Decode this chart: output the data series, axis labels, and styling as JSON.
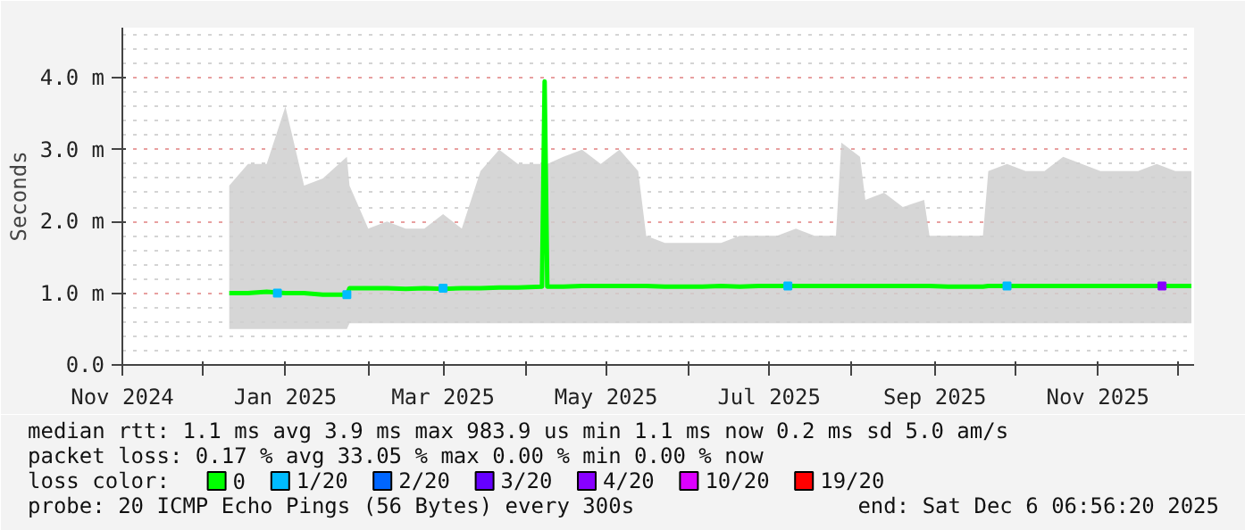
{
  "chart_data": {
    "type": "line",
    "ylabel": "Seconds",
    "xlim": [
      "2024-11-01",
      "2025-12-07"
    ],
    "xticks": [
      {
        "value": "2024-11-01",
        "label": "Nov 2024"
      },
      {
        "value": "2024-12-01",
        "label": null
      },
      {
        "value": "2025-01-01",
        "label": "Jan 2025"
      },
      {
        "value": "2025-02-01",
        "label": null
      },
      {
        "value": "2025-03-01",
        "label": "Mar 2025"
      },
      {
        "value": "2025-04-01",
        "label": null
      },
      {
        "value": "2025-05-01",
        "label": "May 2025"
      },
      {
        "value": "2025-06-01",
        "label": null
      },
      {
        "value": "2025-07-01",
        "label": "Jul 2025"
      },
      {
        "value": "2025-08-01",
        "label": null
      },
      {
        "value": "2025-09-01",
        "label": "Sep 2025"
      },
      {
        "value": "2025-10-01",
        "label": null
      },
      {
        "value": "2025-11-01",
        "label": "Nov 2025"
      },
      {
        "value": "2025-12-01",
        "label": null
      }
    ],
    "ylim": [
      0,
      4.7
    ],
    "yticks": [
      {
        "value": 0,
        "label": "0.0"
      },
      {
        "value": 1,
        "label": "1.0 m"
      },
      {
        "value": 2,
        "label": "2.0 m"
      },
      {
        "value": 3,
        "label": "3.0 m"
      },
      {
        "value": 4,
        "label": "4.0 m"
      }
    ],
    "grid": true,
    "legend": "bottom",
    "legend_title": "loss color:",
    "x": [
      "2024-12-11",
      "2024-12-18",
      "2024-12-25",
      "2025-01-01",
      "2025-01-08",
      "2025-01-15",
      "2025-01-24",
      "2025-01-25",
      "2025-02-01",
      "2025-02-08",
      "2025-02-15",
      "2025-02-22",
      "2025-03-01",
      "2025-03-08",
      "2025-03-15",
      "2025-03-22",
      "2025-03-29",
      "2025-04-07",
      "2025-04-08",
      "2025-04-09",
      "2025-04-15",
      "2025-04-22",
      "2025-04-29",
      "2025-05-06",
      "2025-05-13",
      "2025-05-16",
      "2025-05-23",
      "2025-05-30",
      "2025-06-06",
      "2025-06-13",
      "2025-06-20",
      "2025-06-27",
      "2025-07-04",
      "2025-07-11",
      "2025-07-18",
      "2025-07-26",
      "2025-07-28",
      "2025-08-04",
      "2025-08-06",
      "2025-08-13",
      "2025-08-20",
      "2025-08-28",
      "2025-08-30",
      "2025-09-06",
      "2025-09-13",
      "2025-09-19",
      "2025-09-21",
      "2025-09-28",
      "2025-10-05",
      "2025-10-12",
      "2025-10-19",
      "2025-10-26",
      "2025-11-02",
      "2025-11-09",
      "2025-11-16",
      "2025-11-23",
      "2025-11-30",
      "2025-12-06"
    ],
    "series": [
      {
        "name": "0",
        "color": "#00ff00",
        "values": [
          1.0,
          1.0,
          1.02,
          1.0,
          1.0,
          0.98,
          0.98,
          1.07,
          1.07,
          1.07,
          1.06,
          1.07,
          1.06,
          1.07,
          1.07,
          1.08,
          1.08,
          1.09,
          3.95,
          1.09,
          1.09,
          1.1,
          1.1,
          1.1,
          1.1,
          1.1,
          1.09,
          1.09,
          1.09,
          1.1,
          1.09,
          1.1,
          1.1,
          1.1,
          1.1,
          1.1,
          1.1,
          1.1,
          1.1,
          1.1,
          1.1,
          1.1,
          1.1,
          1.09,
          1.09,
          1.09,
          1.1,
          1.1,
          1.1,
          1.1,
          1.1,
          1.1,
          1.1,
          1.1,
          1.1,
          1.1,
          1.1,
          1.1
        ],
        "lower": [
          0.5,
          0.5,
          0.5,
          0.5,
          0.5,
          0.5,
          0.5,
          0.58,
          0.58,
          0.58,
          0.58,
          0.58,
          0.58,
          0.58,
          0.58,
          0.58,
          0.58,
          0.58,
          0.58,
          0.58,
          0.58,
          0.58,
          0.58,
          0.58,
          0.58,
          0.58,
          0.58,
          0.58,
          0.58,
          0.58,
          0.58,
          0.58,
          0.58,
          0.58,
          0.58,
          0.58,
          0.58,
          0.58,
          0.58,
          0.58,
          0.58,
          0.58,
          0.58,
          0.58,
          0.58,
          0.58,
          0.58,
          0.58,
          0.58,
          0.58,
          0.58,
          0.58,
          0.58,
          0.58,
          0.58,
          0.58,
          0.58,
          0.58
        ],
        "upper": [
          2.5,
          2.8,
          2.8,
          3.6,
          2.5,
          2.6,
          2.9,
          2.5,
          1.9,
          2.0,
          1.9,
          1.9,
          2.1,
          1.9,
          2.7,
          3.0,
          2.8,
          2.8,
          2.8,
          2.8,
          2.9,
          3.0,
          2.8,
          3.0,
          2.7,
          1.8,
          1.7,
          1.7,
          1.7,
          1.7,
          1.8,
          1.8,
          1.8,
          1.9,
          1.8,
          1.8,
          3.1,
          2.9,
          2.3,
          2.4,
          2.2,
          2.3,
          1.8,
          1.8,
          1.8,
          1.8,
          2.7,
          2.8,
          2.7,
          2.7,
          2.9,
          2.8,
          2.7,
          2.7,
          2.7,
          2.8,
          2.7,
          2.7
        ]
      },
      {
        "name": "1/20",
        "color": "#00bbff",
        "type": "scatter",
        "marker": "square",
        "x": [
          "2024-12-29",
          "2025-01-24",
          "2025-03-01",
          "2025-07-08",
          "2025-09-28"
        ],
        "values": [
          1.0,
          0.98,
          1.07,
          1.1,
          1.1
        ]
      },
      {
        "name": "2/20",
        "color": "#0066ff",
        "type": "scatter",
        "marker": "square",
        "values": [
          null,
          null,
          null,
          null,
          null,
          null,
          null,
          null,
          null,
          null,
          null,
          null,
          null,
          null,
          null,
          null,
          null,
          null,
          null,
          null,
          null,
          null,
          null,
          null,
          null,
          null,
          null,
          null,
          null,
          null,
          null,
          null,
          null,
          null,
          null,
          null,
          null,
          null,
          null,
          null,
          null,
          null,
          null,
          null,
          null,
          null,
          null,
          null,
          null,
          null,
          null,
          null,
          null,
          null,
          null,
          null,
          null,
          null
        ]
      },
      {
        "name": "3/20",
        "color": "#6600ff",
        "type": "scatter",
        "marker": "square",
        "values": [
          null,
          null,
          null,
          null,
          null,
          null,
          null,
          null,
          null,
          null,
          null,
          null,
          null,
          null,
          null,
          null,
          null,
          null,
          null,
          null,
          null,
          null,
          null,
          null,
          null,
          null,
          null,
          null,
          null,
          null,
          null,
          null,
          null,
          null,
          null,
          null,
          null,
          null,
          null,
          null,
          null,
          null,
          null,
          null,
          null,
          null,
          null,
          null,
          null,
          null,
          null,
          null,
          null,
          null,
          null,
          null,
          null,
          null
        ]
      },
      {
        "name": "4/20",
        "color": "#8800ff",
        "type": "scatter",
        "marker": "square",
        "x": [
          "2025-11-25"
        ],
        "values": [
          1.1
        ]
      },
      {
        "name": "10/20",
        "color": "#dd00ff",
        "type": "scatter",
        "marker": "square",
        "values": [
          null,
          null,
          null,
          null,
          null,
          null,
          null,
          null,
          null,
          null,
          null,
          null,
          null,
          null,
          null,
          null,
          null,
          null,
          null,
          null,
          null,
          null,
          null,
          null,
          null,
          null,
          null,
          null,
          null,
          null,
          null,
          null,
          null,
          null,
          null,
          null,
          null,
          null,
          null,
          null,
          null,
          null,
          null,
          null,
          null,
          null,
          null,
          null,
          null,
          null,
          null,
          null,
          null,
          null,
          null,
          null,
          null,
          null
        ]
      },
      {
        "name": "19/20",
        "color": "#ff0000",
        "type": "scatter",
        "marker": "square",
        "values": [
          null,
          null,
          null,
          null,
          null,
          null,
          null,
          null,
          null,
          null,
          null,
          null,
          null,
          null,
          null,
          null,
          null,
          null,
          null,
          null,
          null,
          null,
          null,
          null,
          null,
          null,
          null,
          null,
          null,
          null,
          null,
          null,
          null,
          null,
          null,
          null,
          null,
          null,
          null,
          null,
          null,
          null,
          null,
          null,
          null,
          null,
          null,
          null,
          null,
          null,
          null,
          null,
          null,
          null,
          null,
          null,
          null,
          null
        ]
      }
    ],
    "annotations": [
      "median rtt: 1.1 ms avg 3.9 ms max 983.9 us min 1.1 ms now 0.2 ms sd 5.0 am/s",
      "packet loss: 0.17 % avg 33.05 % max 0.00 % min 0.00 % now",
      "probe: 20 ICMP Echo Pings (56 Bytes) every 300s",
      "end: Sat Dec 6 06:56:20 2025"
    ]
  }
}
